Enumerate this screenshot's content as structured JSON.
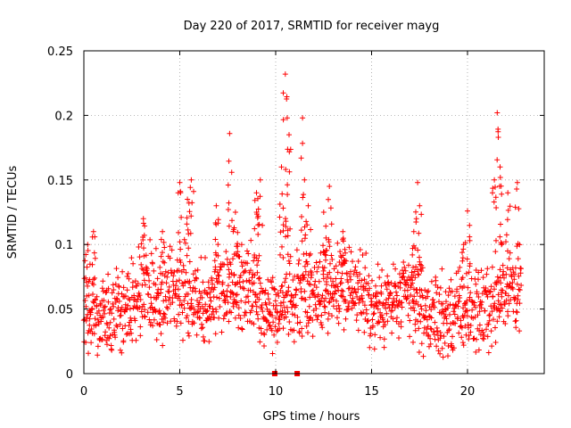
{
  "chart_data": {
    "type": "scatter",
    "title": "Day 220 of 2017, SRMTID for receiver mayg",
    "xlabel": "GPS time / hours",
    "ylabel": "SRMTID / TECUs",
    "xlim": [
      0,
      24
    ],
    "ylim": [
      0,
      0.25
    ],
    "xticks": [
      0,
      5,
      10,
      15,
      20
    ],
    "xtick_labels": [
      "0",
      "5",
      "10",
      "15",
      "20"
    ],
    "yticks": [
      0,
      0.05,
      0.1,
      0.15,
      0.2,
      0.25
    ],
    "ytick_labels": [
      "0",
      "0.05",
      "0.1",
      "0.15",
      "0.2",
      "0.25"
    ],
    "grid": true,
    "marker": "+",
    "color": "#ff0000",
    "time_range_hours": [
      0,
      22.8
    ],
    "seed": 220,
    "background_profile": [
      {
        "x": 0,
        "y": 0.052
      },
      {
        "x": 1,
        "y": 0.048
      },
      {
        "x": 2,
        "y": 0.05
      },
      {
        "x": 3,
        "y": 0.065
      },
      {
        "x": 4,
        "y": 0.06
      },
      {
        "x": 5,
        "y": 0.066
      },
      {
        "x": 6,
        "y": 0.055
      },
      {
        "x": 7,
        "y": 0.06
      },
      {
        "x": 8,
        "y": 0.07
      },
      {
        "x": 9,
        "y": 0.06
      },
      {
        "x": 10,
        "y": 0.05
      },
      {
        "x": 11,
        "y": 0.06
      },
      {
        "x": 12,
        "y": 0.06
      },
      {
        "x": 13,
        "y": 0.07
      },
      {
        "x": 14,
        "y": 0.07
      },
      {
        "x": 15,
        "y": 0.05
      },
      {
        "x": 16,
        "y": 0.055
      },
      {
        "x": 17,
        "y": 0.06
      },
      {
        "x": 18,
        "y": 0.045
      },
      {
        "x": 19,
        "y": 0.045
      },
      {
        "x": 20,
        "y": 0.05
      },
      {
        "x": 21,
        "y": 0.05
      },
      {
        "x": 22,
        "y": 0.07
      },
      {
        "x": 22.8,
        "y": 0.06
      }
    ],
    "peaks": [
      {
        "x": 0.2,
        "y": 0.1
      },
      {
        "x": 0.5,
        "y": 0.11
      },
      {
        "x": 3.1,
        "y": 0.12
      },
      {
        "x": 4.1,
        "y": 0.11
      },
      {
        "x": 5.0,
        "y": 0.148
      },
      {
        "x": 5.4,
        "y": 0.135
      },
      {
        "x": 5.6,
        "y": 0.15
      },
      {
        "x": 6.9,
        "y": 0.13
      },
      {
        "x": 7.6,
        "y": 0.186
      },
      {
        "x": 7.9,
        "y": 0.125
      },
      {
        "x": 9.0,
        "y": 0.14
      },
      {
        "x": 9.2,
        "y": 0.15
      },
      {
        "x": 10.3,
        "y": 0.16
      },
      {
        "x": 10.5,
        "y": 0.232
      },
      {
        "x": 10.6,
        "y": 0.198
      },
      {
        "x": 10.7,
        "y": 0.185
      },
      {
        "x": 11.4,
        "y": 0.198
      },
      {
        "x": 11.5,
        "y": 0.15
      },
      {
        "x": 11.7,
        "y": 0.13
      },
      {
        "x": 12.5,
        "y": 0.125
      },
      {
        "x": 12.8,
        "y": 0.145
      },
      {
        "x": 13.5,
        "y": 0.11
      },
      {
        "x": 17.2,
        "y": 0.11
      },
      {
        "x": 17.4,
        "y": 0.148
      },
      {
        "x": 17.5,
        "y": 0.13
      },
      {
        "x": 19.8,
        "y": 0.1
      },
      {
        "x": 20.0,
        "y": 0.126
      },
      {
        "x": 21.4,
        "y": 0.15
      },
      {
        "x": 21.55,
        "y": 0.202
      },
      {
        "x": 21.7,
        "y": 0.16
      },
      {
        "x": 22.1,
        "y": 0.14
      },
      {
        "x": 22.6,
        "y": 0.148
      }
    ],
    "baseline_markers": [
      {
        "x": 9.95,
        "y": 0,
        "marker": "square"
      },
      {
        "x": 11.12,
        "y": 0,
        "marker": "square"
      }
    ]
  }
}
